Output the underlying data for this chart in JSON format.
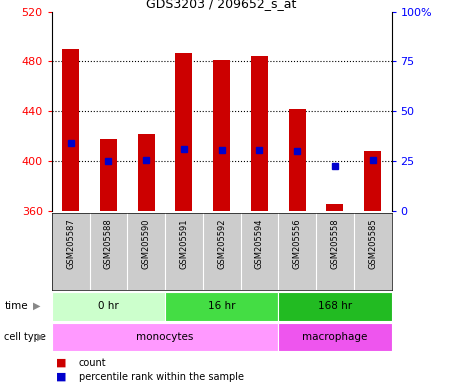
{
  "title": "GDS3203 / 209652_s_at",
  "samples": [
    "GSM205587",
    "GSM205588",
    "GSM205590",
    "GSM205591",
    "GSM205592",
    "GSM205594",
    "GSM205556",
    "GSM205558",
    "GSM205585"
  ],
  "red_values": [
    490,
    418,
    422,
    487,
    481,
    484,
    442,
    366,
    408
  ],
  "blue_values": [
    415,
    400,
    401,
    410,
    409,
    409,
    408,
    396,
    401
  ],
  "ymin": 360,
  "ymax": 520,
  "yticks_left": [
    360,
    400,
    440,
    480,
    520
  ],
  "yticks_right": [
    0,
    25,
    50,
    75,
    100
  ],
  "bar_color": "#cc0000",
  "dot_color": "#0000cc",
  "time_groups": [
    {
      "label": "0 hr",
      "start": 0,
      "end": 3,
      "color": "#ccffcc"
    },
    {
      "label": "16 hr",
      "start": 3,
      "end": 6,
      "color": "#44dd44"
    },
    {
      "label": "168 hr",
      "start": 6,
      "end": 9,
      "color": "#22bb22"
    }
  ],
  "cell_groups": [
    {
      "label": "monocytes",
      "start": 0,
      "end": 6,
      "color": "#ff99ff"
    },
    {
      "label": "macrophage",
      "start": 6,
      "end": 9,
      "color": "#ee55ee"
    }
  ],
  "time_label": "time",
  "cell_type_label": "cell type",
  "legend_count": "count",
  "legend_pct": "percentile rank within the sample",
  "bar_width": 0.45,
  "label_bg": "#cccccc"
}
